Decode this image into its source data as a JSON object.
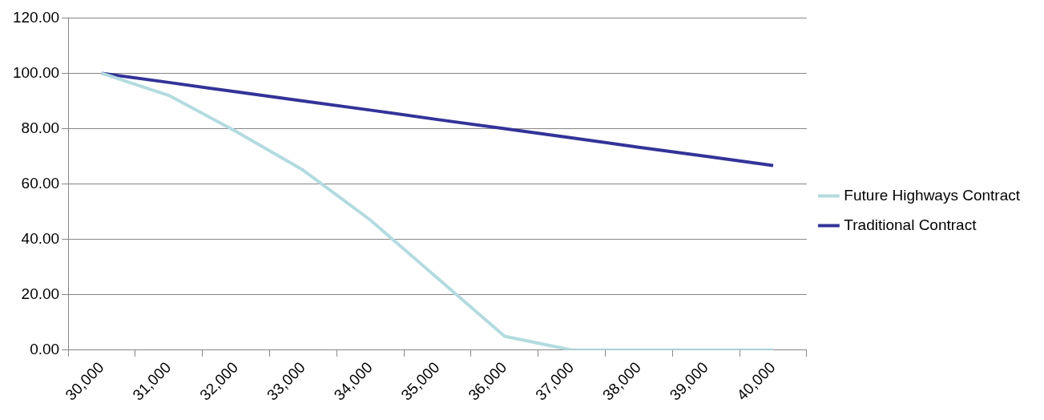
{
  "chart_data": {
    "type": "line",
    "categories": [
      "30,000",
      "31,000",
      "32,000",
      "33,000",
      "34,000",
      "35,000",
      "36,000",
      "37,000",
      "38,000",
      "39,000",
      "40,000"
    ],
    "series": [
      {
        "name": "Future Highways Contract",
        "color": "#b3dbe0",
        "values": [
          100,
          92,
          79,
          65,
          47,
          26,
          5,
          0,
          0,
          0,
          0
        ]
      },
      {
        "name": "Traditional Contract",
        "color": "#333399",
        "values": [
          100,
          96.7,
          93.3,
          90,
          86.7,
          83.3,
          80,
          76.7,
          73.3,
          70,
          66.7
        ]
      }
    ],
    "ylim": [
      0,
      120
    ],
    "yticks": [
      {
        "value": 0,
        "label": "0.00"
      },
      {
        "value": 20,
        "label": "20.00"
      },
      {
        "value": 40,
        "label": "40.00"
      },
      {
        "value": 60,
        "label": "60.00"
      },
      {
        "value": 80,
        "label": "80.00"
      },
      {
        "value": 100,
        "label": "100.00"
      },
      {
        "value": 120,
        "label": "120.00"
      }
    ],
    "grid": "y",
    "legend": "right",
    "marker": "none",
    "line_style": "solid"
  }
}
